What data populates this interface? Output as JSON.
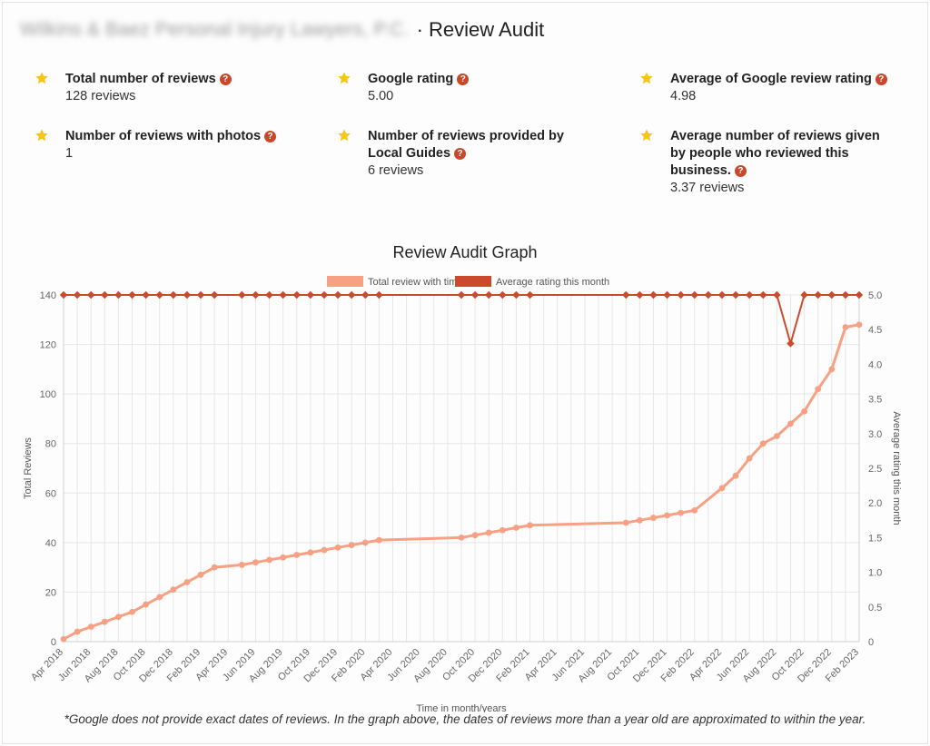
{
  "header": {
    "business_name": "Wilkins & Baez Personal Injury Lawyers, P.C.",
    "title_suffix": "· Review Audit"
  },
  "stats": [
    {
      "label": "Total number of reviews",
      "value": "128 reviews",
      "help": "?"
    },
    {
      "label": "Google rating",
      "value": "5.00",
      "help": "?"
    },
    {
      "label": "Average of Google review rating",
      "value": "4.98",
      "help": "?"
    },
    {
      "label": "Number of reviews with photos",
      "value": "1",
      "help": "?"
    },
    {
      "label": "Number of reviews provided by Local Guides",
      "value": "6 reviews",
      "help": "?"
    },
    {
      "label": "Average number of reviews given by people who reviewed this business.",
      "value": "3.37 reviews",
      "help": "?"
    }
  ],
  "colors": {
    "star": "#f5c518",
    "help_badge": "#c9472a",
    "total_series": "#f7a083",
    "rating_series": "#cc4a2c"
  },
  "icons": {
    "stat": "star-icon",
    "help": "question-circle-icon"
  },
  "graph_title": "Review Audit Graph",
  "footnote": "*Google does not provide exact dates of reviews. In the graph above, the dates of reviews more than a year old are approximated to within the year.",
  "chart_data": {
    "type": "line",
    "xlabel": "Time in month/years",
    "ylabel": "Total Reviews",
    "y2label": "Average rating this month",
    "ylim": [
      0,
      140
    ],
    "yticks": [
      0,
      20,
      40,
      60,
      80,
      100,
      120,
      140
    ],
    "y2lim": [
      0,
      5
    ],
    "y2ticks": [
      "0",
      "0.5",
      "1.0",
      "1.5",
      "2.0",
      "2.5",
      "3.0",
      "3.5",
      "4.0",
      "4.5",
      "5.0"
    ],
    "grid": true,
    "legend_position": "top",
    "x": [
      "Apr 2018",
      "May 2018",
      "Jun 2018",
      "Jul 2018",
      "Aug 2018",
      "Sep 2018",
      "Oct 2018",
      "Nov 2018",
      "Dec 2018",
      "Jan 2019",
      "Feb 2019",
      "Mar 2019",
      "Apr 2019",
      "May 2019",
      "Jun 2019",
      "Jul 2019",
      "Aug 2019",
      "Sep 2019",
      "Oct 2019",
      "Nov 2019",
      "Dec 2019",
      "Jan 2020",
      "Feb 2020",
      "Mar 2020",
      "Apr 2020",
      "May 2020",
      "Jun 2020",
      "Jul 2020",
      "Aug 2020",
      "Sep 2020",
      "Oct 2020",
      "Nov 2020",
      "Dec 2020",
      "Jan 2021",
      "Feb 2021",
      "Mar 2021",
      "Apr 2021",
      "May 2021",
      "Jun 2021",
      "Jul 2021",
      "Aug 2021",
      "Sep 2021",
      "Oct 2021",
      "Nov 2021",
      "Dec 2021",
      "Jan 2022",
      "Feb 2022",
      "Mar 2022",
      "Apr 2022",
      "May 2022",
      "Jun 2022",
      "Jul 2022",
      "Aug 2022",
      "Sep 2022",
      "Oct 2022",
      "Nov 2022",
      "Dec 2022",
      "Jan 2023",
      "Feb 2023"
    ],
    "x_tick_labels": [
      "Apr 2018",
      "Jun 2018",
      "Aug 2018",
      "Oct 2018",
      "Dec 2018",
      "Feb 2019",
      "Apr 2019",
      "Jun 2019",
      "Aug 2019",
      "Oct 2019",
      "Dec 2019",
      "Feb 2020",
      "Apr 2020",
      "Jun 2020",
      "Aug 2020",
      "Oct 2020",
      "Dec 2020",
      "Feb 2021",
      "Apr 2021",
      "Jun 2021",
      "Aug 2021",
      "Oct 2021",
      "Dec 2021",
      "Feb 2022",
      "Apr 2022",
      "Jun 2022",
      "Aug 2022",
      "Oct 2022",
      "Dec 2022",
      "Feb 2023"
    ],
    "series": [
      {
        "name": "Total review with time",
        "axis": "left",
        "values": [
          1,
          4,
          6,
          8,
          10,
          12,
          15,
          18,
          21,
          24,
          27,
          30,
          null,
          31,
          32,
          33,
          34,
          35,
          36,
          37,
          38,
          39,
          40,
          41,
          null,
          null,
          null,
          null,
          null,
          42,
          43,
          44,
          45,
          46,
          47,
          null,
          null,
          null,
          null,
          null,
          null,
          48,
          49,
          50,
          51,
          52,
          53,
          null,
          62,
          67,
          74,
          80,
          83,
          88,
          93,
          102,
          110,
          127,
          128
        ],
        "x_extra": [
          {
            "x": "Feb 2023",
            "offset": 0.5,
            "value": 128
          }
        ]
      },
      {
        "name": "Average rating this month",
        "axis": "right",
        "values": [
          5,
          5,
          5,
          5,
          5,
          5,
          5,
          5,
          5,
          5,
          5,
          5,
          null,
          5,
          5,
          5,
          5,
          5,
          5,
          5,
          5,
          5,
          5,
          5,
          null,
          null,
          null,
          null,
          null,
          5,
          5,
          5,
          5,
          5,
          5,
          null,
          null,
          null,
          null,
          null,
          null,
          5,
          5,
          5,
          5,
          5,
          5,
          5,
          5,
          5,
          5,
          5,
          5,
          4.3,
          5,
          5,
          5,
          5,
          5
        ]
      }
    ]
  }
}
